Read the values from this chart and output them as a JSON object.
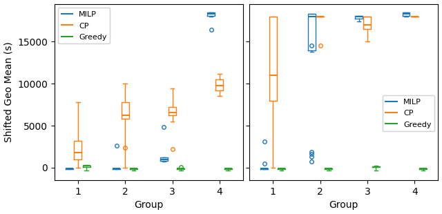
{
  "left_panel": {
    "MILP": {
      "1": {
        "whislo": -200,
        "q1": -150,
        "med": -100,
        "q3": -50,
        "whishi": -50,
        "fliers": []
      },
      "2": {
        "whislo": -200,
        "q1": -150,
        "med": -100,
        "q3": -50,
        "whishi": -50,
        "fliers": [
          2600
        ]
      },
      "3": {
        "whislo": 700,
        "q1": 800,
        "med": 1000,
        "q3": 1200,
        "whishi": 1200,
        "fliers": [
          4800
        ]
      },
      "4": {
        "whislo": 18000,
        "q1": 18100,
        "med": 18300,
        "q3": 18500,
        "whishi": 18500,
        "fliers": [
          16400
        ]
      }
    },
    "CP": {
      "1": {
        "whislo": 0,
        "q1": 1000,
        "med": 1800,
        "q3": 3200,
        "whishi": 7800,
        "fliers": []
      },
      "2": {
        "whislo": 0,
        "q1": 5800,
        "med": 6200,
        "q3": 7800,
        "whishi": 10000,
        "fliers": [
          2400
        ]
      },
      "3": {
        "whislo": 5500,
        "q1": 6200,
        "med": 6600,
        "q3": 7200,
        "whishi": 9400,
        "fliers": [
          2200
        ]
      },
      "4": {
        "whislo": 8500,
        "q1": 9200,
        "med": 9800,
        "q3": 10500,
        "whishi": 11200,
        "fliers": []
      }
    },
    "Greedy": {
      "1": {
        "whislo": -300,
        "q1": 100,
        "med": 200,
        "q3": 250,
        "whishi": 300,
        "fliers": []
      },
      "2": {
        "whislo": -300,
        "q1": -200,
        "med": -100,
        "q3": -50,
        "whishi": -50,
        "fliers": []
      },
      "3": {
        "whislo": -300,
        "q1": -200,
        "med": -100,
        "q3": -50,
        "whishi": -50,
        "fliers": [
          100
        ]
      },
      "4": {
        "whislo": -300,
        "q1": -200,
        "med": -100,
        "q3": -50,
        "whishi": -50,
        "fliers": []
      }
    }
  },
  "right_panel": {
    "MILP": {
      "1": {
        "whislo": -200,
        "q1": -150,
        "med": -100,
        "q3": -50,
        "whishi": -50,
        "fliers": [
          500,
          3100
        ]
      },
      "2": {
        "whislo": 13800,
        "q1": 14000,
        "med": 18000,
        "q3": 18300,
        "whishi": 18300,
        "fliers": [
          700,
          1300,
          1600,
          1900,
          14500
        ]
      },
      "3": {
        "whislo": 17400,
        "q1": 17700,
        "med": 18000,
        "q3": 18100,
        "whishi": 18100,
        "fliers": []
      },
      "4": {
        "whislo": 18000,
        "q1": 18100,
        "med": 18300,
        "q3": 18500,
        "whishi": 18500,
        "fliers": []
      }
    },
    "CP": {
      "1": {
        "whislo": 0,
        "q1": 8000,
        "med": 11000,
        "q3": 18000,
        "whishi": 18000,
        "fliers": []
      },
      "2": {
        "whislo": 18000,
        "q1": 18000,
        "med": 18000,
        "q3": 18000,
        "whishi": 18000,
        "fliers": [
          14500
        ]
      },
      "3": {
        "whislo": 15000,
        "q1": 16500,
        "med": 17000,
        "q3": 18000,
        "whishi": 18000,
        "fliers": []
      },
      "4": {
        "whislo": 18000,
        "q1": 18000,
        "med": 18000,
        "q3": 18000,
        "whishi": 18000,
        "fliers": []
      }
    },
    "Greedy": {
      "1": {
        "whislo": -300,
        "q1": -200,
        "med": -100,
        "q3": -50,
        "whishi": -50,
        "fliers": []
      },
      "2": {
        "whislo": -300,
        "q1": -200,
        "med": -100,
        "q3": -50,
        "whishi": -50,
        "fliers": []
      },
      "3": {
        "whislo": -300,
        "q1": 50,
        "med": 100,
        "q3": 150,
        "whishi": 200,
        "fliers": []
      },
      "4": {
        "whislo": -300,
        "q1": -200,
        "med": -100,
        "q3": -50,
        "whishi": -50,
        "fliers": []
      }
    }
  },
  "colors": {
    "MILP": "#1f77b4",
    "CP": "#ff7f0e",
    "Greedy": "#2ca02c"
  },
  "groups": [
    1,
    2,
    3,
    4
  ],
  "ylabel": "Shifted Geo Mean (s)",
  "xlabel": "Group",
  "ylim": [
    -1500,
    19500
  ],
  "yticks": [
    0,
    5000,
    10000,
    15000
  ]
}
